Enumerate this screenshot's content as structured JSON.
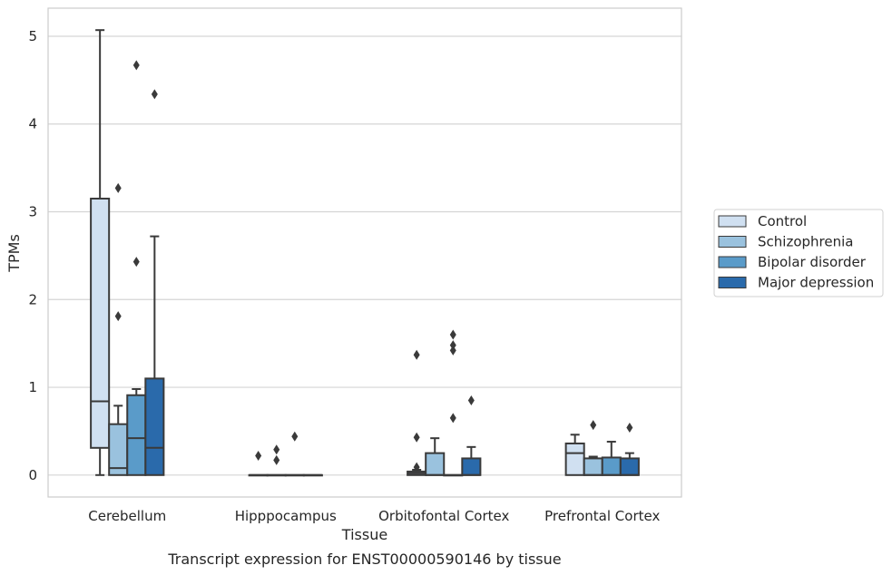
{
  "chart_data": {
    "type": "box",
    "title": "",
    "caption": "Transcript expression for ENST00000590146 by tissue",
    "xlabel": "Tissue",
    "ylabel": "TPMs",
    "ylim": [
      -0.25,
      5.32
    ],
    "yticks": [
      "0",
      "1",
      "2",
      "3",
      "4",
      "5"
    ],
    "categories": [
      "Cerebellum",
      "Hipppocampus",
      "Orbitofontal Cortex",
      "Prefrontal Cortex"
    ],
    "grid": "horizontal",
    "legend_position": "right",
    "series": [
      {
        "name": "Control",
        "color": "#d0e0f1",
        "boxes": [
          {
            "whisker_low": 0.0,
            "q1": 0.31,
            "median": 0.84,
            "q3": 3.15,
            "whisker_high": 5.07,
            "outliers": []
          },
          {
            "whisker_low": 0.0,
            "q1": 0.0,
            "median": 0.0,
            "q3": 0.0,
            "whisker_high": 0.0,
            "outliers": [
              0.22
            ]
          },
          {
            "whisker_low": 0.0,
            "q1": 0.0,
            "median": 0.02,
            "q3": 0.04,
            "whisker_high": 0.06,
            "outliers": [
              0.09,
              0.43,
              1.37
            ]
          },
          {
            "whisker_low": 0.0,
            "q1": 0.0,
            "median": 0.25,
            "q3": 0.36,
            "whisker_high": 0.46,
            "outliers": []
          }
        ]
      },
      {
        "name": "Schizophrenia",
        "color": "#9ac2de",
        "boxes": [
          {
            "whisker_low": 0.0,
            "q1": 0.0,
            "median": 0.08,
            "q3": 0.58,
            "whisker_high": 0.79,
            "outliers": [
              1.81,
              3.27
            ]
          },
          {
            "whisker_low": 0.0,
            "q1": 0.0,
            "median": 0.0,
            "q3": 0.0,
            "whisker_high": 0.0,
            "outliers": [
              0.17,
              0.29
            ]
          },
          {
            "whisker_low": 0.0,
            "q1": 0.0,
            "median": 0.0,
            "q3": 0.25,
            "whisker_high": 0.42,
            "outliers": []
          },
          {
            "whisker_low": 0.0,
            "q1": 0.0,
            "median": 0.0,
            "q3": 0.19,
            "whisker_high": 0.21,
            "outliers": [
              0.57
            ]
          }
        ]
      },
      {
        "name": "Bipolar disorder",
        "color": "#5a9bc9",
        "boxes": [
          {
            "whisker_low": 0.0,
            "q1": 0.0,
            "median": 0.42,
            "q3": 0.91,
            "whisker_high": 0.98,
            "outliers": [
              2.43,
              4.67
            ]
          },
          {
            "whisker_low": 0.0,
            "q1": 0.0,
            "median": 0.0,
            "q3": 0.0,
            "whisker_high": 0.0,
            "outliers": [
              0.44
            ]
          },
          {
            "whisker_low": 0.0,
            "q1": 0.0,
            "median": 0.0,
            "q3": 0.0,
            "whisker_high": 0.0,
            "outliers": [
              0.65,
              1.42,
              1.48,
              1.6
            ]
          },
          {
            "whisker_low": 0.0,
            "q1": 0.0,
            "median": 0.0,
            "q3": 0.2,
            "whisker_high": 0.38,
            "outliers": []
          }
        ]
      },
      {
        "name": "Major depression",
        "color": "#2a6aab",
        "boxes": [
          {
            "whisker_low": 0.0,
            "q1": 0.0,
            "median": 0.31,
            "q3": 1.1,
            "whisker_high": 2.72,
            "outliers": [
              4.34
            ]
          },
          {
            "whisker_low": 0.0,
            "q1": 0.0,
            "median": 0.0,
            "q3": 0.0,
            "whisker_high": 0.0,
            "outliers": []
          },
          {
            "whisker_low": 0.0,
            "q1": 0.0,
            "median": 0.0,
            "q3": 0.19,
            "whisker_high": 0.32,
            "outliers": [
              0.85
            ]
          },
          {
            "whisker_low": 0.0,
            "q1": 0.0,
            "median": 0.0,
            "q3": 0.19,
            "whisker_high": 0.25,
            "outliers": [
              0.54
            ]
          }
        ]
      }
    ]
  }
}
